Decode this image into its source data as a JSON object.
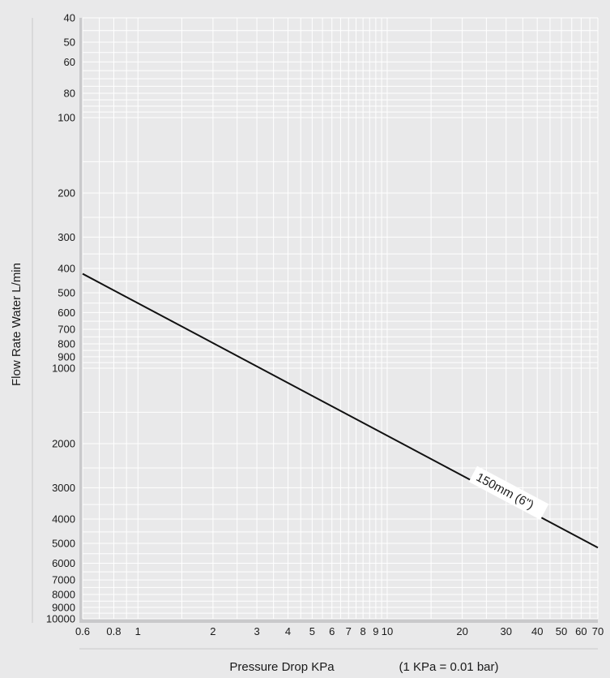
{
  "chart_data": {
    "type": "line",
    "x_scale": "log",
    "y_scale": "log",
    "y_inverted": true,
    "xlim": [
      0.6,
      70
    ],
    "ylim": [
      40,
      10000
    ],
    "xlabel": "Pressure Drop KPa",
    "xlabel_note": "(1 KPa = 0.01 bar)",
    "ylabel": "Flow Rate Water  L/min",
    "grid": true,
    "x_ticks": [
      {
        "v": 0.6,
        "label": "0.6"
      },
      {
        "v": 0.8,
        "label": "0.8"
      },
      {
        "v": 1,
        "label": "1"
      },
      {
        "v": 2,
        "label": "2"
      },
      {
        "v": 3,
        "label": "3"
      },
      {
        "v": 4,
        "label": "4"
      },
      {
        "v": 5,
        "label": "5"
      },
      {
        "v": 6,
        "label": "6"
      },
      {
        "v": 7,
        "label": "7"
      },
      {
        "v": 8,
        "label": "8"
      },
      {
        "v": 9,
        "label": "9"
      },
      {
        "v": 10,
        "label": "10"
      },
      {
        "v": 20,
        "label": "20"
      },
      {
        "v": 30,
        "label": "30"
      },
      {
        "v": 40,
        "label": "40"
      },
      {
        "v": 50,
        "label": "50"
      },
      {
        "v": 60,
        "label": "60"
      },
      {
        "v": 70,
        "label": "70"
      }
    ],
    "y_ticks": [
      {
        "v": 40,
        "label": "40"
      },
      {
        "v": 50,
        "label": "50"
      },
      {
        "v": 60,
        "label": "60"
      },
      {
        "v": 80,
        "label": "80"
      },
      {
        "v": 100,
        "label": "100"
      },
      {
        "v": 200,
        "label": "200"
      },
      {
        "v": 300,
        "label": "300"
      },
      {
        "v": 400,
        "label": "400"
      },
      {
        "v": 500,
        "label": "500"
      },
      {
        "v": 600,
        "label": "600"
      },
      {
        "v": 700,
        "label": "700"
      },
      {
        "v": 800,
        "label": "800"
      },
      {
        "v": 900,
        "label": "900"
      },
      {
        "v": 1000,
        "label": "1000"
      },
      {
        "v": 2000,
        "label": "2000"
      },
      {
        "v": 3000,
        "label": "3000"
      },
      {
        "v": 4000,
        "label": "4000"
      },
      {
        "v": 5000,
        "label": "5000"
      },
      {
        "v": 6000,
        "label": "6000"
      },
      {
        "v": 7000,
        "label": "7000"
      },
      {
        "v": 8000,
        "label": "8000"
      },
      {
        "v": 9000,
        "label": "9000"
      },
      {
        "v": 10000,
        "label": "10000"
      }
    ],
    "series": [
      {
        "name": "150mm (6\")",
        "points": [
          {
            "x": 0.6,
            "y": 420
          },
          {
            "x": 70,
            "y": 5200
          }
        ]
      }
    ],
    "colors": {
      "background": "#e9e9ea",
      "grid": "#ffffff",
      "line": "#111111",
      "axis_band": "#c9c9cb"
    }
  }
}
